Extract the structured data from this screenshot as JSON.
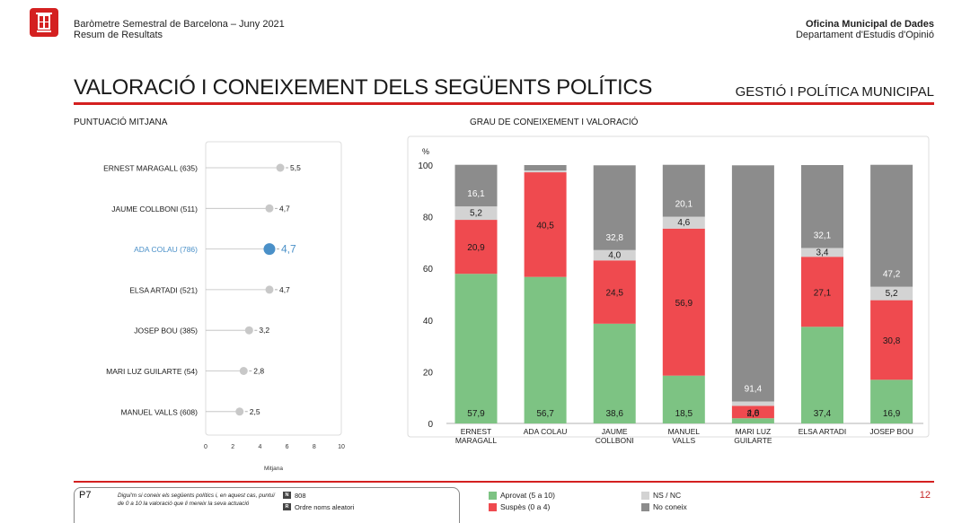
{
  "header": {
    "left_line1": "Baròmetre Semestral de Barcelona – Juny 2021",
    "left_line2": "Resum de Resultats",
    "right_line1": "Oficina Municipal de Dades",
    "right_line2": "Departament d'Estudis d'Opinió"
  },
  "title": "VALORACIÓ I CONEIXEMENT DELS SEGÜENTS POLÍTICS",
  "section": "GESTIÓ I POLÍTICA MUNICIPAL",
  "left_subtitle": "PUNTUACIÓ MITJANA",
  "right_subtitle": "GRAU DE CONEIXEMENT I VALORACIÓ",
  "colors": {
    "accent": "#d42020",
    "highlight": "#4a90c8",
    "dot": "#c8c8c8",
    "aprovat": "#7dc383",
    "suspes": "#ef4a4f",
    "nsnc": "#d3d3d3",
    "noconeix": "#8c8c8c"
  },
  "chart_data": [
    {
      "type": "scatter",
      "title": "PUNTUACIÓ MITJANA",
      "xlabel": "Mitjana",
      "xlim": [
        0,
        10
      ],
      "xticks": [
        "0",
        "2",
        "4",
        "6",
        "8",
        "10"
      ],
      "categories": [
        "ERNEST MARAGALL (635)",
        "JAUME COLLBONI (511)",
        "ADA COLAU (786)",
        "ELSA ARTADI (521)",
        "JOSEP BOU (385)",
        "MARI LUZ GUILARTE (54)",
        "MANUEL VALLS (608)"
      ],
      "values": [
        5.5,
        4.7,
        4.7,
        4.7,
        3.2,
        2.8,
        2.5
      ],
      "labels": [
        "5,5",
        "4,7",
        "4,7",
        "4,7",
        "3,2",
        "2,8",
        "2,5"
      ],
      "highlight_index": 2
    },
    {
      "type": "bar",
      "stacked": true,
      "title": "GRAU DE CONEIXEMENT I VALORACIÓ",
      "ylabel": "%",
      "ylim": [
        0,
        100
      ],
      "yticks": [
        "0",
        "20",
        "40",
        "60",
        "80",
        "100"
      ],
      "categories": [
        [
          "ERNEST",
          "MARAGALL"
        ],
        [
          "ADA COLAU"
        ],
        [
          "JAUME",
          "COLLBONI"
        ],
        [
          "MANUEL",
          "VALLS"
        ],
        [
          "MARI LUZ",
          "GUILARTE"
        ],
        [
          "ELSA ARTADI"
        ],
        [
          "JOSEP BOU"
        ]
      ],
      "series": [
        {
          "name": "Aprovat (5 a 10)",
          "values": [
            57.9,
            56.7,
            38.6,
            18.5,
            2.0,
            37.4,
            16.9
          ],
          "labels": [
            "57,9",
            "56,7",
            "38,6",
            "18,5",
            "2,0",
            "37,4",
            "16,9"
          ]
        },
        {
          "name": "Suspès (0 a 4)",
          "values": [
            20.9,
            40.5,
            24.5,
            56.9,
            4.8,
            27.1,
            30.8
          ],
          "labels": [
            "20,9",
            "40,5",
            "24,5",
            "56,9",
            "4,8",
            "27,1",
            "30,8"
          ]
        },
        {
          "name": "NS / NC",
          "values": [
            5.2,
            0.7,
            4.0,
            4.6,
            1.7,
            3.4,
            5.2
          ],
          "labels": [
            "5,2",
            "",
            "4,0",
            "4,6",
            "",
            "3,4",
            "5,2"
          ]
        },
        {
          "name": "No coneix",
          "values": [
            16.1,
            2.1,
            32.8,
            20.1,
            91.4,
            32.1,
            47.2
          ],
          "labels": [
            "16,1",
            "",
            "32,8",
            "20,1",
            "91,4",
            "32,1",
            "47,2"
          ]
        }
      ]
    }
  ],
  "footer": {
    "question_code": "P7",
    "question_text": "Digui'm si coneix els següents polítics i, en aquest cas, puntuï de 0 a 10 la valoració que li mereix la seva actuació",
    "n_box": "N",
    "n_value": "808",
    "r_box": "R",
    "r_value": "Ordre noms aleatori",
    "legend": [
      "Aprovat (5 a 10)",
      "Suspès (0 a 4)",
      "NS / NC",
      "No coneix"
    ],
    "page": "12"
  }
}
